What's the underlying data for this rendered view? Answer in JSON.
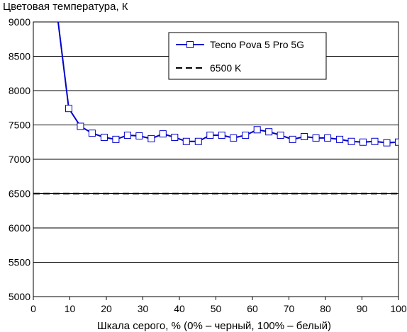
{
  "chart_data": {
    "type": "line",
    "title": "",
    "ylabel": "Цветовая температура, К",
    "xlabel": "Шкала серого, % (0% – черный, 100% – белый)",
    "xlim": [
      0,
      100
    ],
    "ylim": [
      5000,
      9000
    ],
    "xticks": [
      0,
      10,
      20,
      30,
      40,
      50,
      60,
      70,
      80,
      90,
      100
    ],
    "yticks": [
      5000,
      5500,
      6000,
      6500,
      7000,
      7500,
      8000,
      8500,
      9000
    ],
    "grid": true,
    "legend_position": "top-right",
    "series": [
      {
        "name": "Tecno Pova 5 Pro 5G",
        "color": "#0000cc",
        "marker": "square",
        "x": [
          6.8,
          9.7,
          12.9,
          16.1,
          19.4,
          22.6,
          25.8,
          29.0,
          32.3,
          35.5,
          38.7,
          41.9,
          45.2,
          48.4,
          51.6,
          54.8,
          58.1,
          61.3,
          64.5,
          67.7,
          71.0,
          74.2,
          77.4,
          80.6,
          83.9,
          87.1,
          90.3,
          93.5,
          96.8,
          100
        ],
        "y": [
          9000,
          7740,
          7480,
          7380,
          7320,
          7290,
          7350,
          7340,
          7300,
          7370,
          7320,
          7260,
          7260,
          7350,
          7350,
          7310,
          7350,
          7430,
          7400,
          7350,
          7290,
          7330,
          7310,
          7310,
          7290,
          7260,
          7250,
          7260,
          7240,
          7250
        ],
        "marker_start_index": 1
      },
      {
        "name": "6500 K",
        "color": "#000000",
        "style": "dashed",
        "x": [
          0,
          100
        ],
        "y": [
          6500,
          6500
        ]
      }
    ]
  }
}
